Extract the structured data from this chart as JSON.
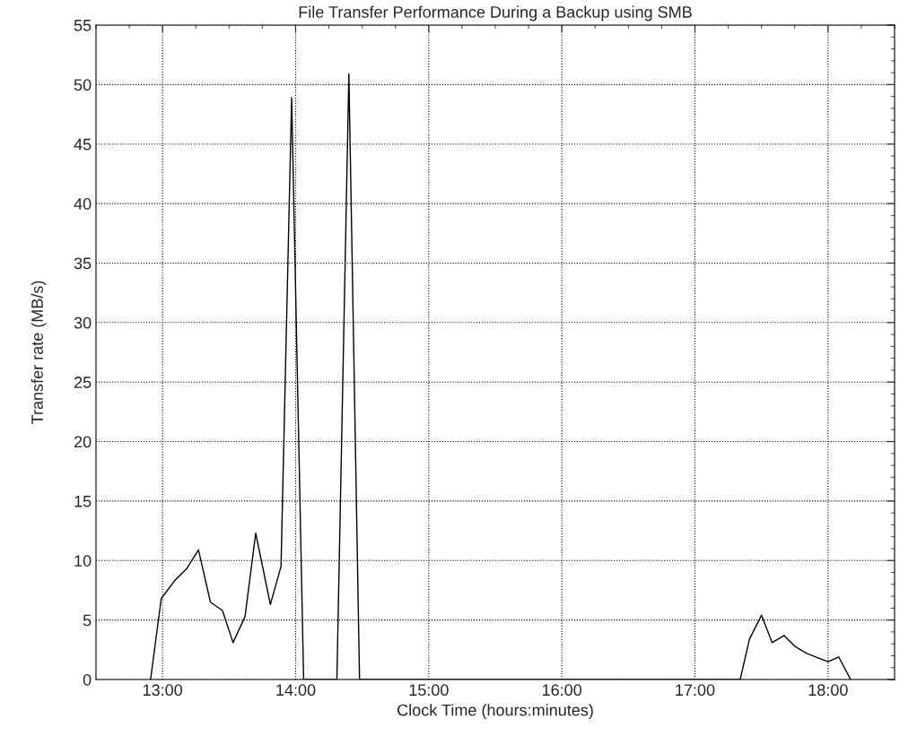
{
  "chart_data": {
    "type": "line",
    "title": "File Transfer Performance During a Backup using SMB",
    "xlabel": "Clock Time (hours:minutes)",
    "ylabel": "Transfer rate (MB/s)",
    "x": [
      12.91,
      12.99,
      13.09,
      13.18,
      13.27,
      13.36,
      13.45,
      13.53,
      13.62,
      13.7,
      13.81,
      13.89,
      13.97,
      14.06,
      14.31,
      14.4,
      14.48,
      17.34,
      17.41,
      17.5,
      17.58,
      17.67,
      17.75,
      17.84,
      17.93,
      18.0,
      18.08,
      18.17
    ],
    "series": [
      {
        "color": "#000000",
        "values": [
          0,
          6.8,
          8.3,
          9.3,
          10.9,
          6.5,
          5.8,
          3.1,
          5.3,
          12.3,
          6.3,
          9.5,
          48.9,
          0,
          0,
          50.9,
          0,
          0,
          3.4,
          5.4,
          3.1,
          3.7,
          2.8,
          2.2,
          1.8,
          1.5,
          1.9,
          0
        ]
      }
    ],
    "xlim": [
      12.5,
      18.5
    ],
    "ylim": [
      0,
      55
    ],
    "xticks": [
      {
        "value": 13,
        "label": "13:00"
      },
      {
        "value": 14,
        "label": "14:00"
      },
      {
        "value": 15,
        "label": "15:00"
      },
      {
        "value": 16,
        "label": "16:00"
      },
      {
        "value": 17,
        "label": "17:00"
      },
      {
        "value": 18,
        "label": "18:00"
      }
    ],
    "yticks": [
      0,
      5,
      10,
      15,
      20,
      25,
      30,
      35,
      40,
      45,
      50,
      55
    ],
    "grid": true,
    "legend": false,
    "marker": "none",
    "line_style": "solid"
  }
}
